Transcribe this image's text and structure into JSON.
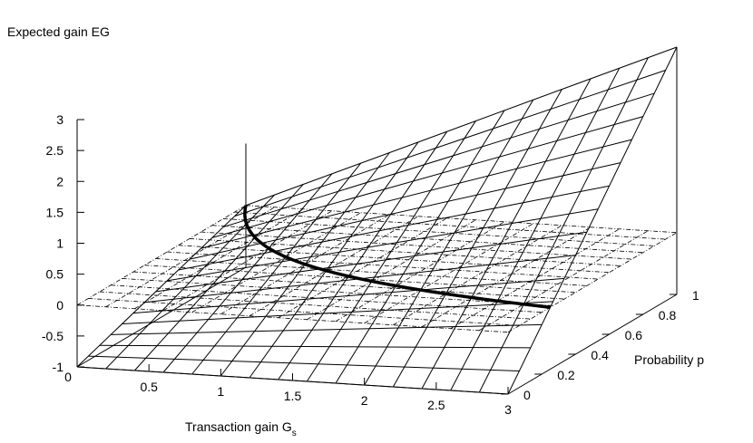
{
  "chart_data": {
    "type": "surface3d",
    "zlabel": "Expected gain EG",
    "xlabel_main": "Transaction gain G",
    "xlabel_sub": "s",
    "ylabel": "Probability p",
    "xlim": [
      0,
      3
    ],
    "ylim": [
      0,
      1
    ],
    "zlim": [
      -1,
      3
    ],
    "x_ticks": [
      "0.5",
      "1",
      "1.5",
      "2",
      "2.5",
      "3"
    ],
    "x_tick_values": [
      0.5,
      1,
      1.5,
      2,
      2.5,
      3
    ],
    "y_ticks": [
      "0",
      "0.2",
      "0.4",
      "0.6",
      "0.8",
      "1"
    ],
    "y_tick_values": [
      0,
      0.2,
      0.4,
      0.6,
      0.8,
      1
    ],
    "z_ticks": [
      "3",
      "2.5",
      "2",
      "1.5",
      "1",
      "0.5",
      "0",
      "-0.5",
      "-1"
    ],
    "z_tick_values": [
      3,
      2.5,
      2,
      1.5,
      1,
      0.5,
      0,
      -0.5,
      -1
    ],
    "origin_label": "0",
    "grid_steps": 15,
    "series": [
      {
        "kind": "surface",
        "formula": "EG = p*(Gs+1) - 1",
        "style": "solid"
      },
      {
        "kind": "plane",
        "formula": "EG = 0",
        "style": "dash-dot"
      },
      {
        "kind": "curve",
        "formula": "EG = 0 intersection, p = 1/(Gs+1)",
        "style": "bold"
      }
    ]
  }
}
